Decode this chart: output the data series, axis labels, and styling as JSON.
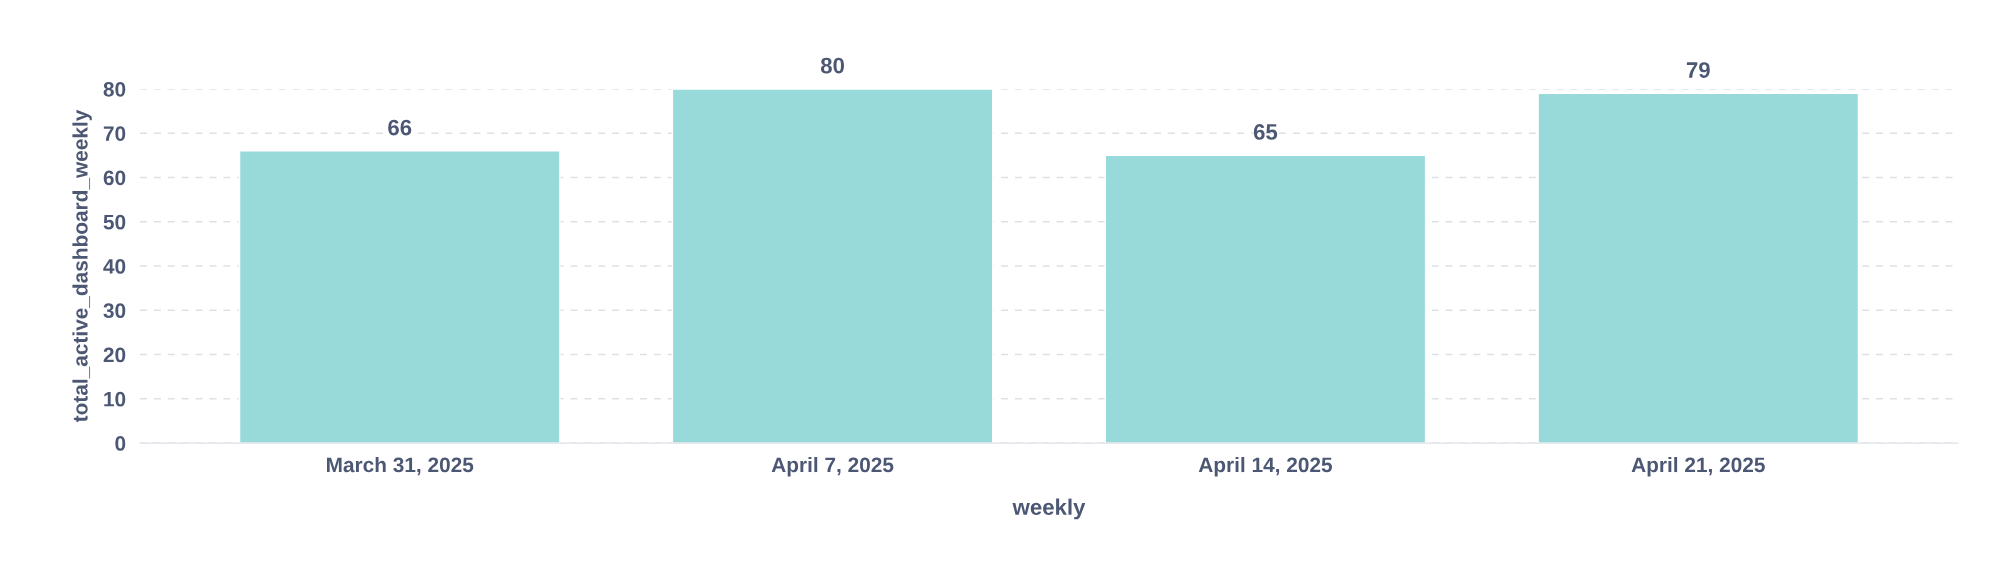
{
  "chart_data": {
    "type": "bar",
    "xlabel": "weekly",
    "ylabel": "total_active_dashboard_weekly",
    "categories": [
      "March 31, 2025",
      "April 7, 2025",
      "April 14, 2025",
      "April 21, 2025"
    ],
    "values": [
      66,
      80,
      65,
      79
    ],
    "color": "#98d9d9",
    "ylim": [
      0,
      80
    ],
    "yticks": [
      0,
      10,
      20,
      30,
      40,
      50,
      60,
      70,
      80
    ],
    "grid": "y",
    "data_labels": true
  }
}
